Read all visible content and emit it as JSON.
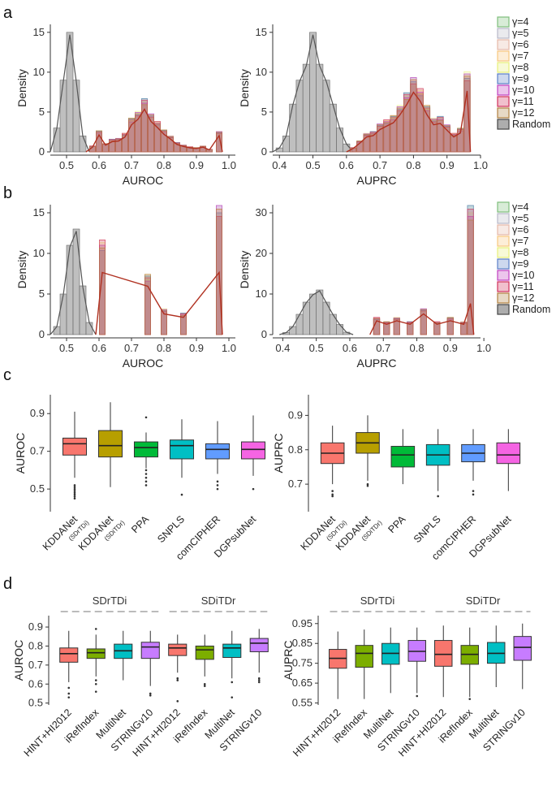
{
  "panels": {
    "a": "a",
    "b": "b",
    "c": "c",
    "d": "d"
  },
  "colors": {
    "gamma": [
      "#7fbf7b",
      "#b8b8c8",
      "#e6b8a8",
      "#f7c77e",
      "#e8f07a",
      "#5b7fc7",
      "#c040c0",
      "#d0305a",
      "#b08040"
    ],
    "random": "#aaaaaa",
    "boxes_c": [
      "#f8766d",
      "#b79f00",
      "#00ba38",
      "#00bfc4",
      "#619cff",
      "#f564e3"
    ],
    "boxes_d": [
      "#f8766d",
      "#7cae00",
      "#00bfc4",
      "#c77cff"
    ],
    "curve": "#b03020",
    "random_curve": "#555555"
  },
  "legend": {
    "items": [
      "γ=4",
      "γ=5",
      "γ=6",
      "γ=7",
      "γ=8",
      "γ=9",
      "γ=10",
      "γ=11",
      "γ=12",
      "Random"
    ]
  },
  "chart_data": [
    {
      "id": "a-left",
      "type": "histogram",
      "panel": "a",
      "xlabel": "AUROC",
      "ylabel": "Density",
      "xlim": [
        0.45,
        1.02
      ],
      "ylim": [
        0,
        16
      ],
      "xticks": [
        "0.5",
        "0.6",
        "0.7",
        "0.8",
        "0.9",
        "1.0"
      ],
      "xtick_values": [
        0.5,
        0.6,
        0.7,
        0.8,
        0.9,
        1.0
      ],
      "yticks": [
        "0",
        "5",
        "10",
        "15"
      ],
      "ytick_values": [
        0,
        5,
        10,
        15
      ],
      "random": {
        "x": [
          0.47,
          0.49,
          0.51,
          0.53,
          0.55
        ],
        "density": [
          3,
          9,
          15,
          9,
          2
        ]
      },
      "gamma_x": [
        0.58,
        0.6,
        0.62,
        0.64,
        0.66,
        0.68,
        0.7,
        0.72,
        0.74,
        0.76,
        0.78,
        0.8,
        0.82,
        0.84,
        0.86,
        0.88,
        0.9,
        0.92,
        0.94,
        0.97
      ],
      "gamma_density": [
        0.7,
        2.5,
        1,
        1.5,
        1.6,
        2.2,
        4,
        4.8,
        6.3,
        4.5,
        3.6,
        2.6,
        1.9,
        1.1,
        0.8,
        0.6,
        0.5,
        0.7,
        0.3,
        2.4
      ]
    },
    {
      "id": "a-right",
      "type": "histogram",
      "panel": "a",
      "xlabel": "AUPRC",
      "ylabel": "Density",
      "xlim": [
        0.38,
        1.0
      ],
      "ylim": [
        0,
        16
      ],
      "xticks": [
        "0.4",
        "0.5",
        "0.6",
        "0.7",
        "0.8",
        "0.9",
        "1.0"
      ],
      "xtick_values": [
        0.4,
        0.5,
        0.6,
        0.7,
        0.8,
        0.9,
        1.0
      ],
      "yticks": [
        "0",
        "5",
        "10",
        "15"
      ],
      "ytick_values": [
        0,
        5,
        10,
        15
      ],
      "random": {
        "x": [
          0.4,
          0.42,
          0.44,
          0.46,
          0.48,
          0.5,
          0.52,
          0.54,
          0.56,
          0.58,
          0.6
        ],
        "density": [
          0.5,
          2,
          6,
          9,
          11,
          15,
          11,
          9,
          6,
          3,
          1
        ]
      },
      "gamma_x": [
        0.62,
        0.64,
        0.66,
        0.68,
        0.7,
        0.72,
        0.74,
        0.76,
        0.78,
        0.8,
        0.82,
        0.84,
        0.86,
        0.88,
        0.9,
        0.92,
        0.94,
        0.96
      ],
      "gamma_density": [
        0.5,
        1.3,
        2.2,
        2.4,
        3.3,
        3.8,
        4.3,
        5.5,
        7,
        8.8,
        7.5,
        5.5,
        4,
        4.2,
        3.2,
        2.2,
        2.8,
        9.5
      ]
    },
    {
      "id": "b-left",
      "type": "histogram",
      "panel": "b",
      "xlabel": "AUROC",
      "ylabel": "Density",
      "xlim": [
        0.45,
        1.02
      ],
      "ylim": [
        0,
        16
      ],
      "xticks": [
        "0.5",
        "0.6",
        "0.7",
        "0.8",
        "0.9",
        "1.0"
      ],
      "xtick_values": [
        0.5,
        0.6,
        0.7,
        0.8,
        0.9,
        1.0
      ],
      "yticks": [
        "0",
        "5",
        "10",
        "15"
      ],
      "ytick_values": [
        0,
        5,
        10,
        15
      ],
      "random": {
        "x": [
          0.47,
          0.49,
          0.51,
          0.53,
          0.55,
          0.57
        ],
        "density": [
          1,
          5,
          11,
          13,
          6,
          1.5
        ]
      },
      "gamma_x": [
        0.61,
        0.75,
        0.8,
        0.86,
        0.97
      ],
      "gamma_density": [
        11,
        7,
        3,
        2.5,
        15
      ]
    },
    {
      "id": "b-right",
      "type": "histogram",
      "panel": "b",
      "xlabel": "AUPRC",
      "ylabel": "Density",
      "xlim": [
        0.37,
        0.99
      ],
      "ylim": [
        0,
        32
      ],
      "xticks": [
        "0.4",
        "0.5",
        "0.6",
        "0.7",
        "0.8",
        "0.9",
        "1.0"
      ],
      "xtick_values": [
        0.4,
        0.5,
        0.6,
        0.7,
        0.8,
        0.9,
        1.0
      ],
      "yticks": [
        "0",
        "10",
        "20",
        "30"
      ],
      "ytick_values": [
        0,
        10,
        20,
        30
      ],
      "random": {
        "x": [
          0.41,
          0.43,
          0.45,
          0.47,
          0.49,
          0.51,
          0.53,
          0.55,
          0.57,
          0.59
        ],
        "density": [
          0.5,
          2,
          5,
          8,
          10,
          11,
          8,
          5,
          2.5,
          0.6
        ]
      },
      "gamma_x": [
        0.68,
        0.71,
        0.74,
        0.78,
        0.82,
        0.86,
        0.9,
        0.94,
        0.96
      ],
      "gamma_density": [
        4,
        3,
        4,
        3,
        6,
        3,
        4,
        3,
        30
      ]
    },
    {
      "id": "c-left",
      "type": "boxplot",
      "panel": "c",
      "ylabel": "AUROC",
      "ylim": [
        0.38,
        1.0
      ],
      "yticks": [
        "0.5",
        "0.7",
        "0.9"
      ],
      "ytick_values": [
        0.5,
        0.7,
        0.9
      ],
      "categories": [
        "KDDANet",
        "KDDANet",
        "PPA",
        "SNPLS",
        "comCIPHER",
        "DGPsubNet"
      ],
      "category_subs": [
        "(SDrTDi)",
        "(SDiTDr)",
        "",
        "",
        "",
        ""
      ],
      "boxes": [
        {
          "min": 0.56,
          "q1": 0.68,
          "median": 0.74,
          "q3": 0.77,
          "max": 0.91,
          "outliers": [
            0.45,
            0.46,
            0.47,
            0.48,
            0.49,
            0.5,
            0.51,
            0.52
          ]
        },
        {
          "min": 0.51,
          "q1": 0.67,
          "median": 0.73,
          "q3": 0.81,
          "max": 0.96,
          "outliers": []
        },
        {
          "min": 0.61,
          "q1": 0.67,
          "median": 0.72,
          "q3": 0.75,
          "max": 0.8,
          "outliers": [
            0.52,
            0.54,
            0.56,
            0.58,
            0.6,
            0.88
          ]
        },
        {
          "min": 0.56,
          "q1": 0.66,
          "median": 0.73,
          "q3": 0.76,
          "max": 0.87,
          "outliers": [
            0.47
          ]
        },
        {
          "min": 0.58,
          "q1": 0.66,
          "median": 0.71,
          "q3": 0.74,
          "max": 0.86,
          "outliers": [
            0.5,
            0.52,
            0.54
          ]
        },
        {
          "min": 0.57,
          "q1": 0.66,
          "median": 0.71,
          "q3": 0.75,
          "max": 0.89,
          "outliers": [
            0.5
          ]
        }
      ]
    },
    {
      "id": "c-right",
      "type": "boxplot",
      "panel": "c",
      "ylabel": "AUPRC",
      "ylim": [
        0.62,
        0.96
      ],
      "yticks": [
        "0.7",
        "0.8",
        "0.9"
      ],
      "ytick_values": [
        0.7,
        0.8,
        0.9
      ],
      "categories": [
        "KDDANet",
        "KDDANet",
        "PPA",
        "SNPLS",
        "comCIPHER",
        "DGPsubNet"
      ],
      "category_subs": [
        "(SDrTDi)",
        "(SDiTDr)",
        "",
        "",
        "",
        ""
      ],
      "boxes": [
        {
          "min": 0.7,
          "q1": 0.76,
          "median": 0.79,
          "q3": 0.82,
          "max": 0.87,
          "outliers": [
            0.68,
            0.67,
            0.665
          ]
        },
        {
          "min": 0.71,
          "q1": 0.79,
          "median": 0.82,
          "q3": 0.85,
          "max": 0.9,
          "outliers": [
            0.7,
            0.695
          ]
        },
        {
          "min": 0.7,
          "q1": 0.75,
          "median": 0.785,
          "q3": 0.81,
          "max": 0.86,
          "outliers": []
        },
        {
          "min": 0.68,
          "q1": 0.755,
          "median": 0.785,
          "q3": 0.815,
          "max": 0.86,
          "outliers": [
            0.665
          ]
        },
        {
          "min": 0.71,
          "q1": 0.765,
          "median": 0.79,
          "q3": 0.815,
          "max": 0.86,
          "outliers": [
            0.68,
            0.67
          ]
        },
        {
          "min": 0.68,
          "q1": 0.76,
          "median": 0.785,
          "q3": 0.82,
          "max": 0.86,
          "outliers": []
        }
      ]
    },
    {
      "id": "d-left",
      "type": "boxplot",
      "panel": "d",
      "ylabel": "AUROC",
      "ylim": [
        0.49,
        0.96
      ],
      "yticks": [
        "0.5",
        "0.6",
        "0.7",
        "0.8",
        "0.9"
      ],
      "ytick_values": [
        0.5,
        0.6,
        0.7,
        0.8,
        0.9
      ],
      "groups": [
        {
          "label": "SDrTDi",
          "span": [
            0,
            3
          ]
        },
        {
          "label": "SDiTDr",
          "span": [
            4,
            7
          ]
        }
      ],
      "categories": [
        "HINT+HI2012",
        "iRefIndex",
        "MultiNet",
        "STRINGv10",
        "HINT+HI2012",
        "iRefIndex",
        "MultiNet",
        "STRINGv10"
      ],
      "boxes": [
        {
          "min": 0.61,
          "q1": 0.715,
          "median": 0.76,
          "q3": 0.79,
          "max": 0.88,
          "outliers": [
            0.58,
            0.55,
            0.53
          ]
        },
        {
          "min": 0.64,
          "q1": 0.735,
          "median": 0.765,
          "q3": 0.785,
          "max": 0.86,
          "outliers": [
            0.89,
            0.62,
            0.6,
            0.56
          ]
        },
        {
          "min": 0.62,
          "q1": 0.735,
          "median": 0.775,
          "q3": 0.81,
          "max": 0.88,
          "outliers": []
        },
        {
          "min": 0.59,
          "q1": 0.735,
          "median": 0.795,
          "q3": 0.82,
          "max": 0.88,
          "outliers": [
            0.55,
            0.54
          ]
        },
        {
          "min": 0.66,
          "q1": 0.75,
          "median": 0.79,
          "q3": 0.81,
          "max": 0.86,
          "outliers": [
            0.63,
            0.62,
            0.51
          ]
        },
        {
          "min": 0.64,
          "q1": 0.73,
          "median": 0.78,
          "q3": 0.8,
          "max": 0.86,
          "outliers": [
            0.6,
            0.59
          ]
        },
        {
          "min": 0.63,
          "q1": 0.74,
          "median": 0.79,
          "q3": 0.81,
          "max": 0.88,
          "outliers": [
            0.61,
            0.53
          ]
        },
        {
          "min": 0.66,
          "q1": 0.77,
          "median": 0.815,
          "q3": 0.84,
          "max": 0.89,
          "outliers": [
            0.63,
            0.62,
            0.61
          ]
        }
      ]
    },
    {
      "id": "d-right",
      "type": "boxplot",
      "panel": "d",
      "ylabel": "AUPRC",
      "ylim": [
        0.54,
        0.99
      ],
      "yticks": [
        "0.55",
        "0.65",
        "0.75",
        "0.85",
        "0.95"
      ],
      "ytick_values": [
        0.55,
        0.65,
        0.75,
        0.85,
        0.95
      ],
      "groups": [
        {
          "label": "SDrTDi",
          "span": [
            0,
            3
          ]
        },
        {
          "label": "SDiTDr",
          "span": [
            4,
            7
          ]
        }
      ],
      "categories": [
        "HINT+HI2012",
        "iRefIndex",
        "MultiNet",
        "STRINGv10",
        "HINT+HI2012",
        "iRefIndex",
        "MultiNet",
        "STRINGv10"
      ],
      "boxes": [
        {
          "min": 0.57,
          "q1": 0.725,
          "median": 0.775,
          "q3": 0.82,
          "max": 0.91,
          "outliers": []
        },
        {
          "min": 0.57,
          "q1": 0.73,
          "median": 0.8,
          "q3": 0.84,
          "max": 0.92,
          "outliers": []
        },
        {
          "min": 0.6,
          "q1": 0.745,
          "median": 0.8,
          "q3": 0.85,
          "max": 0.93,
          "outliers": []
        },
        {
          "min": 0.6,
          "q1": 0.76,
          "median": 0.81,
          "q3": 0.865,
          "max": 0.93,
          "outliers": [
            0.585
          ]
        },
        {
          "min": 0.58,
          "q1": 0.735,
          "median": 0.795,
          "q3": 0.865,
          "max": 0.94,
          "outliers": []
        },
        {
          "min": 0.58,
          "q1": 0.745,
          "median": 0.795,
          "q3": 0.84,
          "max": 0.93,
          "outliers": [
            0.57
          ]
        },
        {
          "min": 0.63,
          "q1": 0.75,
          "median": 0.8,
          "q3": 0.855,
          "max": 0.94,
          "outliers": []
        },
        {
          "min": 0.62,
          "q1": 0.765,
          "median": 0.83,
          "q3": 0.885,
          "max": 0.95,
          "outliers": []
        }
      ]
    }
  ]
}
